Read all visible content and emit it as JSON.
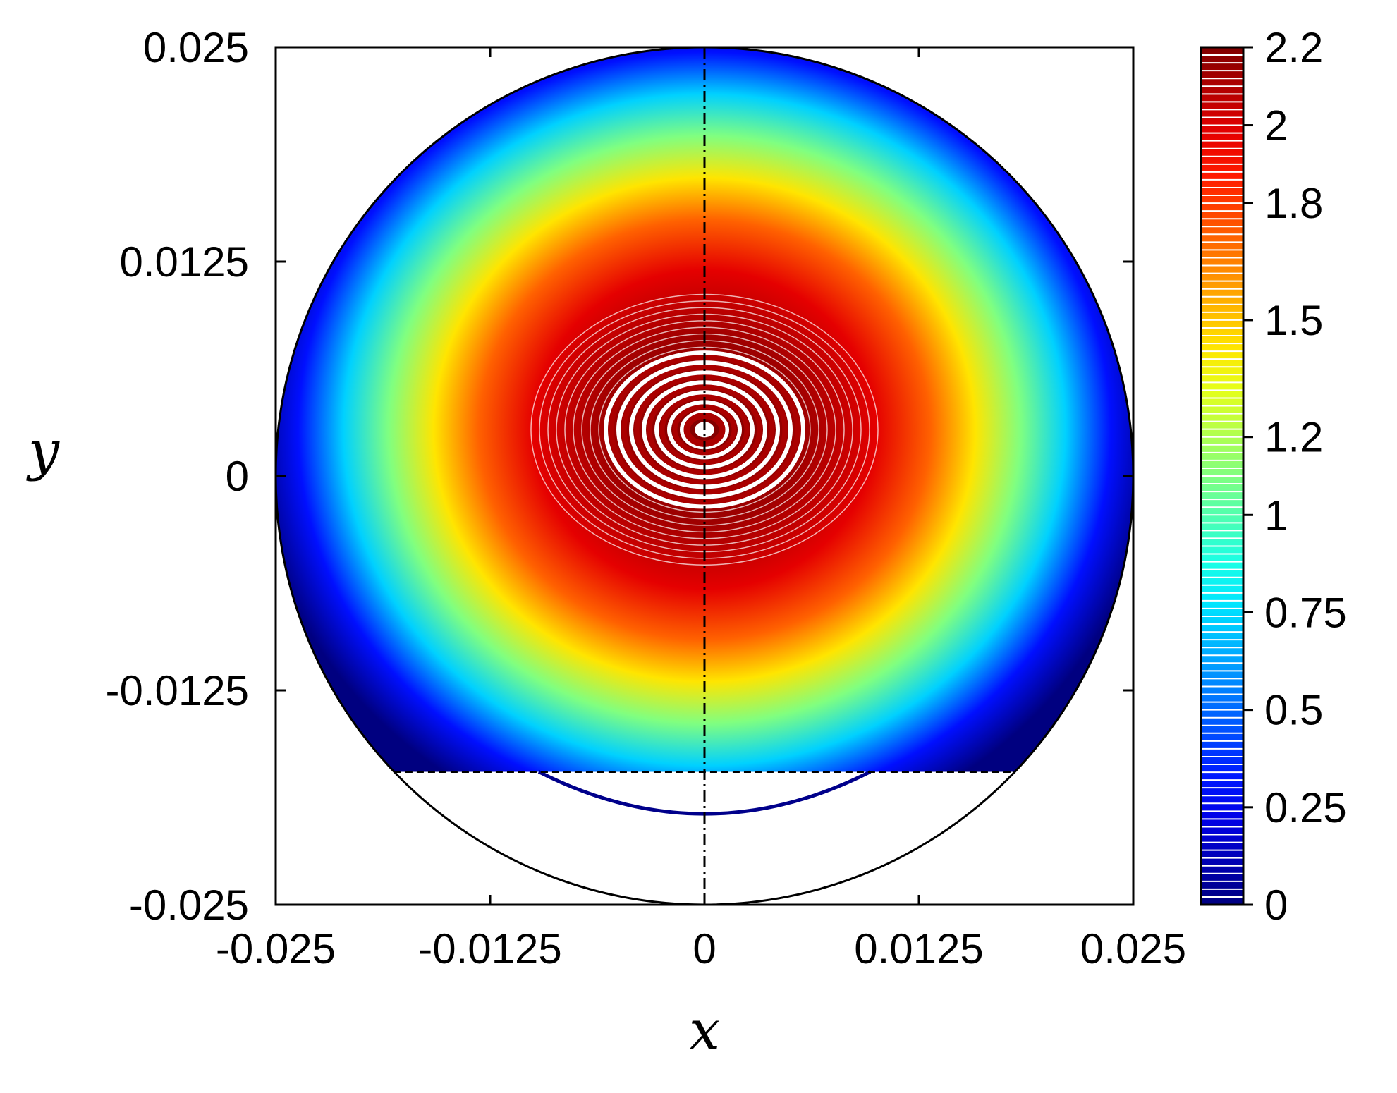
{
  "chart_data": {
    "type": "contour",
    "title": "",
    "xlabel": "x",
    "ylabel": "y",
    "xlim": [
      -0.025,
      0.025
    ],
    "ylim": [
      -0.025,
      0.025
    ],
    "x_ticks": [
      "-0.025",
      "-0.0125",
      "0",
      "0.0125",
      "0.025"
    ],
    "x_tick_values": [
      -0.025,
      -0.0125,
      0,
      0.0125,
      0.025
    ],
    "y_ticks": [
      "0.025",
      "0.0125",
      "0",
      "-0.0125",
      "-0.025"
    ],
    "y_tick_values": [
      0.025,
      0.0125,
      0,
      -0.0125,
      -0.025
    ],
    "colorbar": {
      "min": 0,
      "max": 2.2,
      "tick_labels": [
        "2.2",
        "2",
        "1.8",
        "1.5",
        "1.2",
        "1",
        "0.75",
        "0.5",
        "0.25",
        "0"
      ],
      "tick_values": [
        2.2,
        2.0,
        1.8,
        1.5,
        1.2,
        1.0,
        0.75,
        0.5,
        0.25,
        0
      ],
      "colormap": "jet"
    },
    "domain": {
      "circle_center": [
        0,
        0
      ],
      "circle_radius": 0.025,
      "free_surface_y": -0.01725,
      "symmetry_line_x": 0
    },
    "field": {
      "max_value": 2.2,
      "max_location": [
        0,
        0.0027
      ],
      "lower_contour_min_y": -0.0197
    },
    "grid": false,
    "colors": {
      "domain_outline": "#000000",
      "low_contour": "#00008b",
      "high_contour": "#aa0000"
    }
  }
}
